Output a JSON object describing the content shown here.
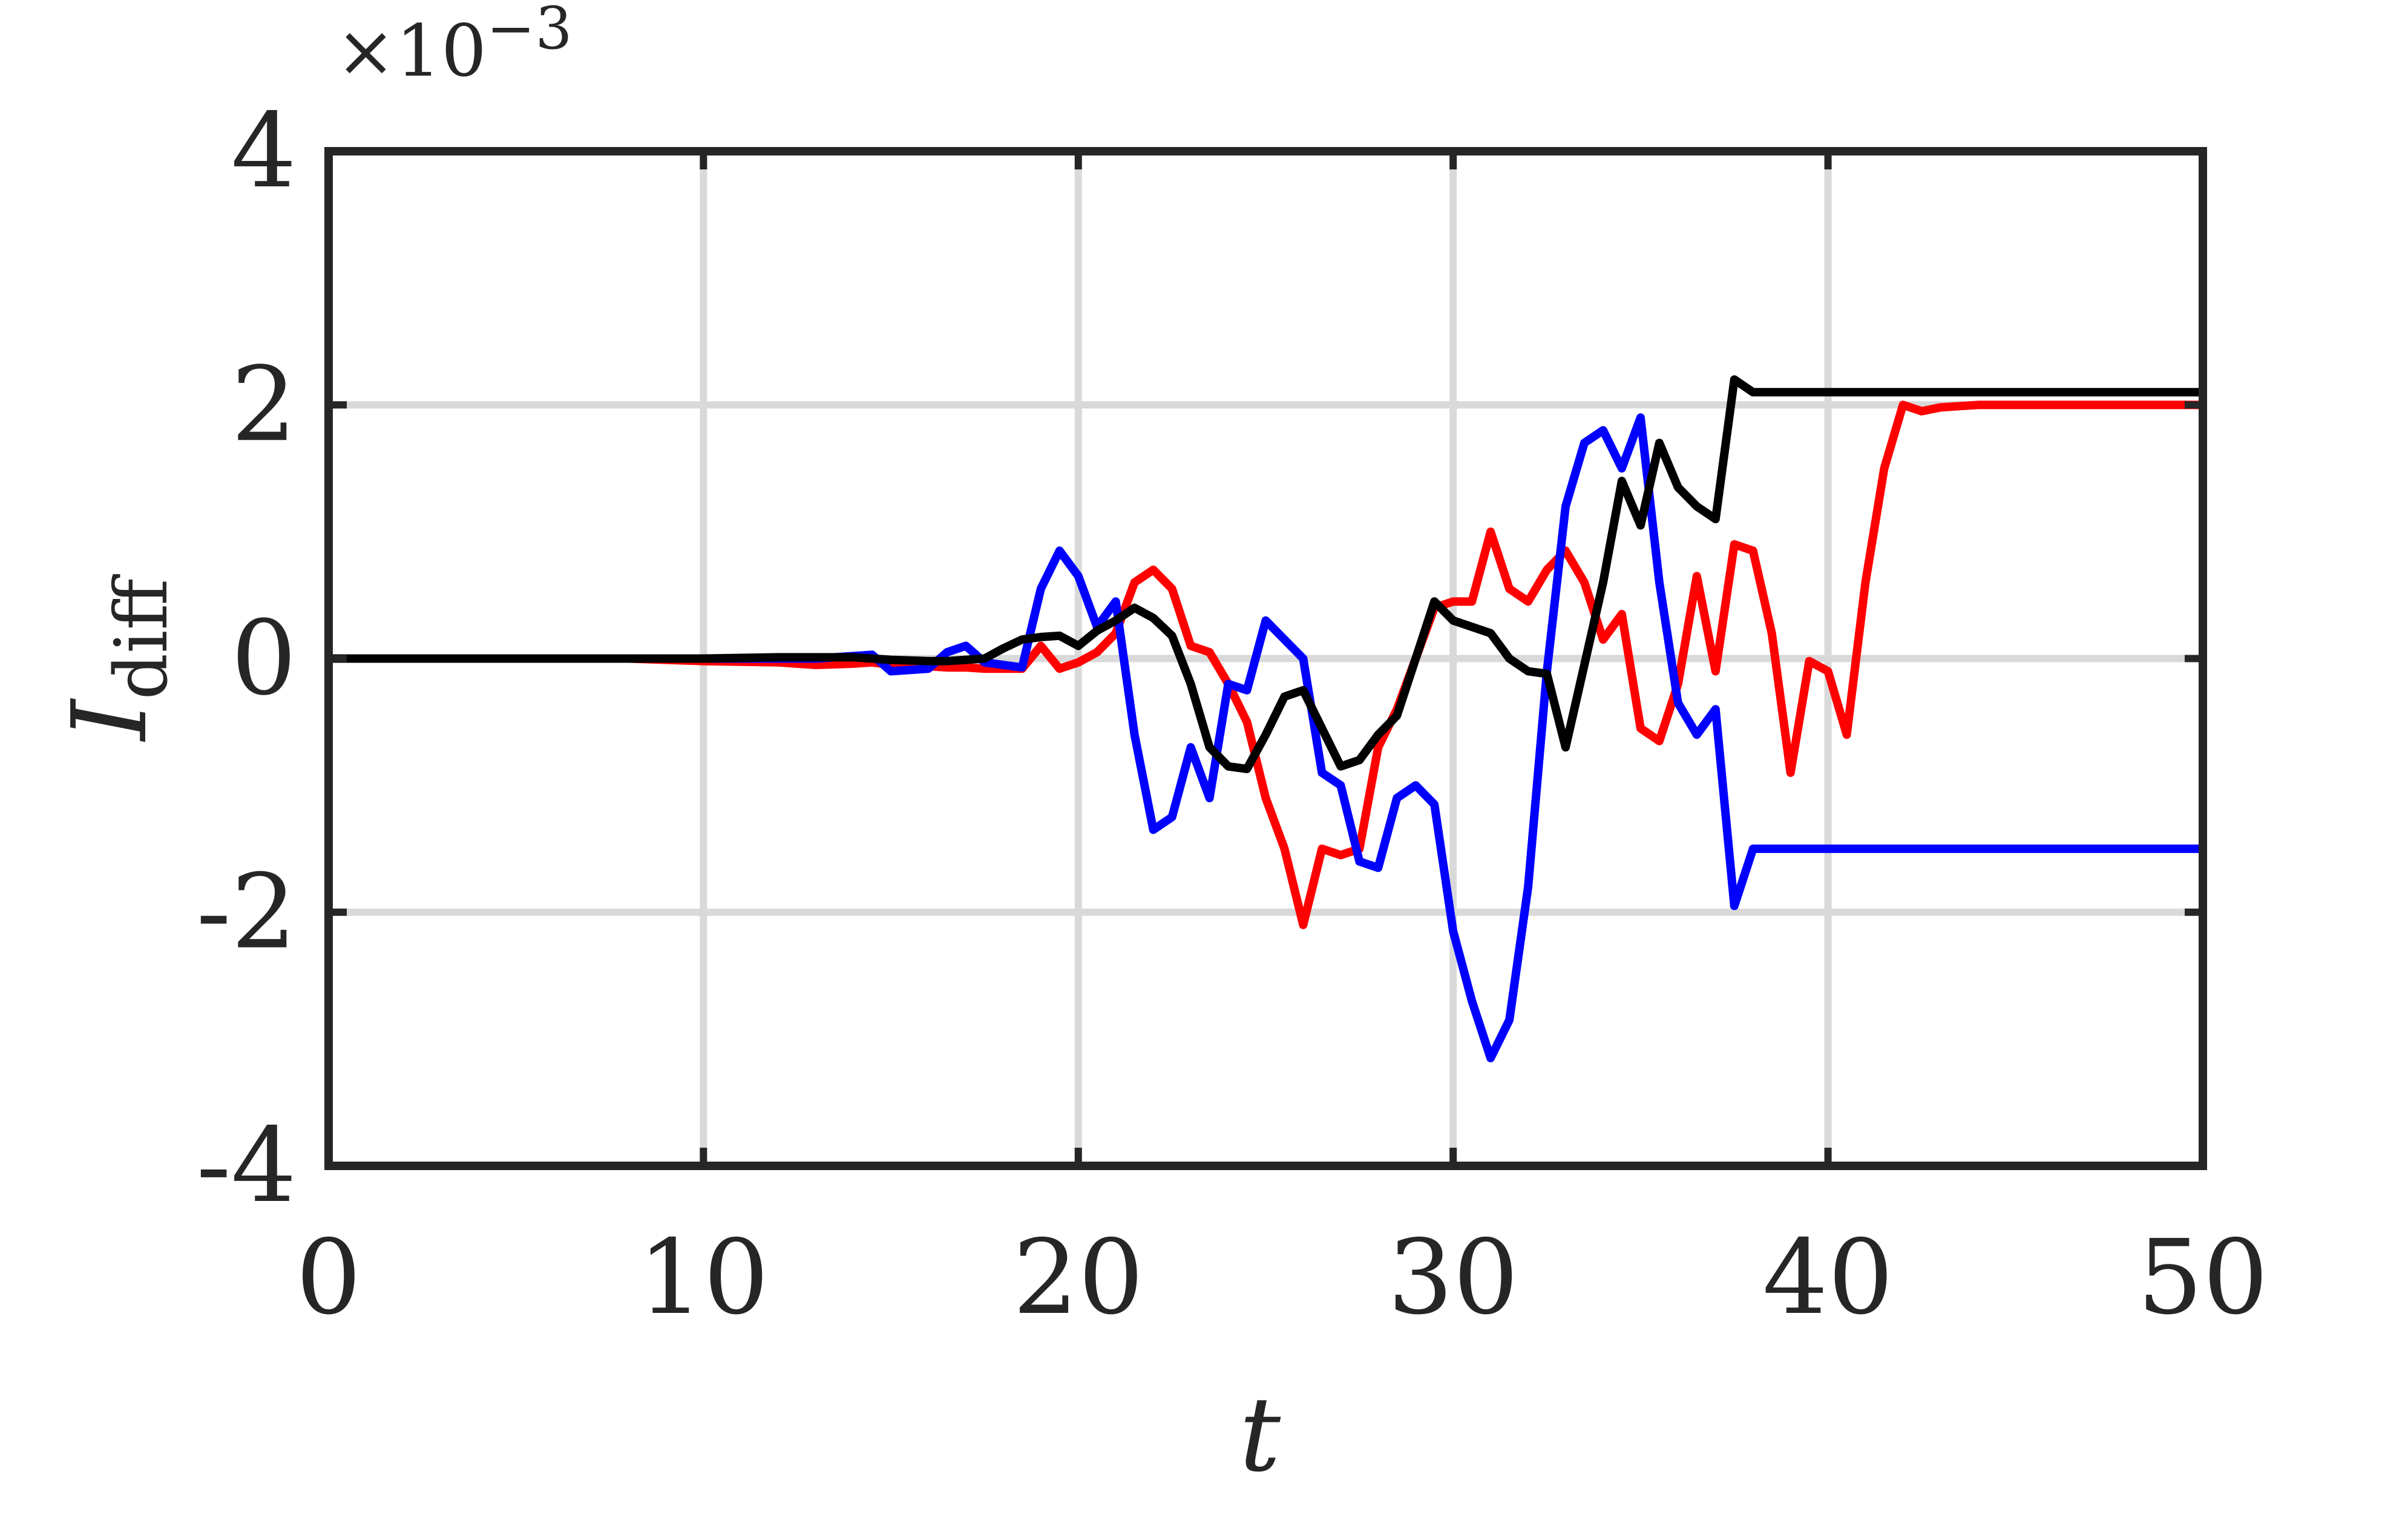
{
  "chart_data": {
    "type": "line",
    "title": "",
    "xlabel": "t",
    "ylabel": "I",
    "ylabel_subscript": "diff",
    "y_exponent_label": "×10",
    "y_exponent_power": "−3",
    "xlim": [
      0,
      50
    ],
    "ylim": [
      -4,
      4
    ],
    "x_ticks": [
      0,
      10,
      20,
      30,
      40,
      50
    ],
    "x_tick_labels": [
      "0",
      "10",
      "20",
      "30",
      "40",
      "50"
    ],
    "y_ticks": [
      -4,
      -2,
      0,
      2,
      4
    ],
    "y_tick_labels": [
      "-4",
      "-2",
      "0",
      "2",
      "4"
    ],
    "grid": true,
    "colors": {
      "red": "#ff0000",
      "blue": "#0000ff",
      "black": "#000000",
      "grid": "#d9d9d9",
      "axis": "#262626"
    },
    "x": [
      0,
      2,
      4,
      6,
      8,
      10,
      12,
      13,
      14,
      14.5,
      15,
      16,
      16.5,
      17,
      17.5,
      18,
      18.5,
      19,
      19.5,
      20,
      20.5,
      21,
      21.5,
      22,
      22.5,
      23,
      23.5,
      24,
      24.5,
      25,
      25.5,
      26,
      26.5,
      27,
      27.5,
      28,
      28.5,
      29,
      29.5,
      30,
      30.5,
      31,
      31.5,
      32,
      32.5,
      33,
      33.5,
      34,
      34.5,
      35,
      35.5,
      36,
      36.5,
      37,
      37.5,
      38,
      38.5,
      39,
      39.5,
      40,
      40.5,
      41,
      41.5,
      42,
      42.5,
      43,
      43.5,
      44,
      44.5,
      45,
      45.5,
      46,
      46.5,
      47,
      47.5,
      48,
      48.5,
      49,
      49.5,
      50
    ],
    "series": [
      {
        "color": "#ff0000",
        "values": [
          0,
          0,
          0,
          0,
          0,
          -0.02,
          -0.03,
          -0.05,
          -0.04,
          -0.03,
          -0.05,
          -0.06,
          -0.07,
          -0.07,
          -0.08,
          -0.08,
          -0.08,
          0.1,
          -0.08,
          -0.03,
          0.05,
          0.2,
          0.6,
          0.7,
          0.55,
          0.1,
          0.05,
          -0.2,
          -0.5,
          -1.1,
          -1.5,
          -2.1,
          -1.5,
          -1.55,
          -1.5,
          -0.7,
          -0.4,
          0.0,
          0.4,
          0.45,
          0.45,
          1.0,
          0.55,
          0.45,
          0.7,
          0.85,
          0.6,
          0.15,
          0.35,
          -0.55,
          -0.65,
          -0.2,
          0.65,
          -0.1,
          0.9,
          0.85,
          0.2,
          -0.9,
          -0.02,
          -0.1,
          -0.6,
          0.6,
          1.5,
          2.0,
          1.95,
          1.98,
          1.99,
          2.0,
          2.0,
          2.0,
          2.0,
          2.0,
          2.0,
          2.0,
          2.0,
          2.0,
          2.0,
          2.0,
          2.0,
          2.0
        ]
      },
      {
        "color": "#0000ff",
        "values": [
          0,
          0,
          0,
          0,
          0,
          0,
          0,
          0,
          0.02,
          0.03,
          -0.1,
          -0.08,
          0.05,
          0.1,
          -0.03,
          -0.05,
          -0.07,
          0.55,
          0.85,
          0.65,
          0.25,
          0.45,
          -0.6,
          -1.35,
          -1.25,
          -0.7,
          -1.1,
          -0.2,
          -0.25,
          0.3,
          0.15,
          0.0,
          -0.9,
          -1.0,
          -1.6,
          -1.65,
          -1.1,
          -1.0,
          -1.15,
          -2.15,
          -2.7,
          -3.15,
          -2.85,
          -1.8,
          -0.1,
          1.2,
          1.7,
          1.8,
          1.5,
          1.9,
          0.6,
          -0.35,
          -0.6,
          -0.4,
          -1.95,
          -1.5,
          -1.5,
          -1.5,
          -1.5,
          -1.5,
          -1.5,
          -1.5,
          -1.5,
          -1.5,
          -1.5,
          -1.5,
          -1.5,
          -1.5,
          -1.5,
          -1.5,
          -1.5,
          -1.5,
          -1.5,
          -1.5,
          -1.5,
          -1.5,
          -1.5,
          -1.5,
          -1.5,
          -1.5
        ]
      },
      {
        "color": "#000000",
        "values": [
          0,
          0,
          0,
          0,
          0,
          0,
          0.01,
          0.01,
          0.01,
          0.0,
          -0.01,
          -0.02,
          -0.02,
          -0.01,
          0.0,
          0.08,
          0.15,
          0.17,
          0.18,
          0.1,
          0.22,
          0.3,
          0.4,
          0.32,
          0.18,
          -0.2,
          -0.7,
          -0.85,
          -0.87,
          -0.6,
          -0.3,
          -0.25,
          -0.55,
          -0.85,
          -0.8,
          -0.6,
          -0.45,
          0.0,
          0.45,
          0.3,
          0.25,
          0.2,
          0.0,
          -0.1,
          -0.12,
          -0.7,
          -0.05,
          0.6,
          1.4,
          1.05,
          1.7,
          1.35,
          1.2,
          1.1,
          2.2,
          2.1,
          2.1,
          2.1,
          2.1,
          2.1,
          2.1,
          2.1,
          2.1,
          2.1,
          2.1,
          2.1,
          2.1,
          2.1,
          2.1,
          2.1,
          2.1,
          2.1,
          2.1,
          2.1,
          2.1,
          2.1,
          2.1,
          2.1,
          2.1,
          2.1
        ]
      }
    ]
  }
}
